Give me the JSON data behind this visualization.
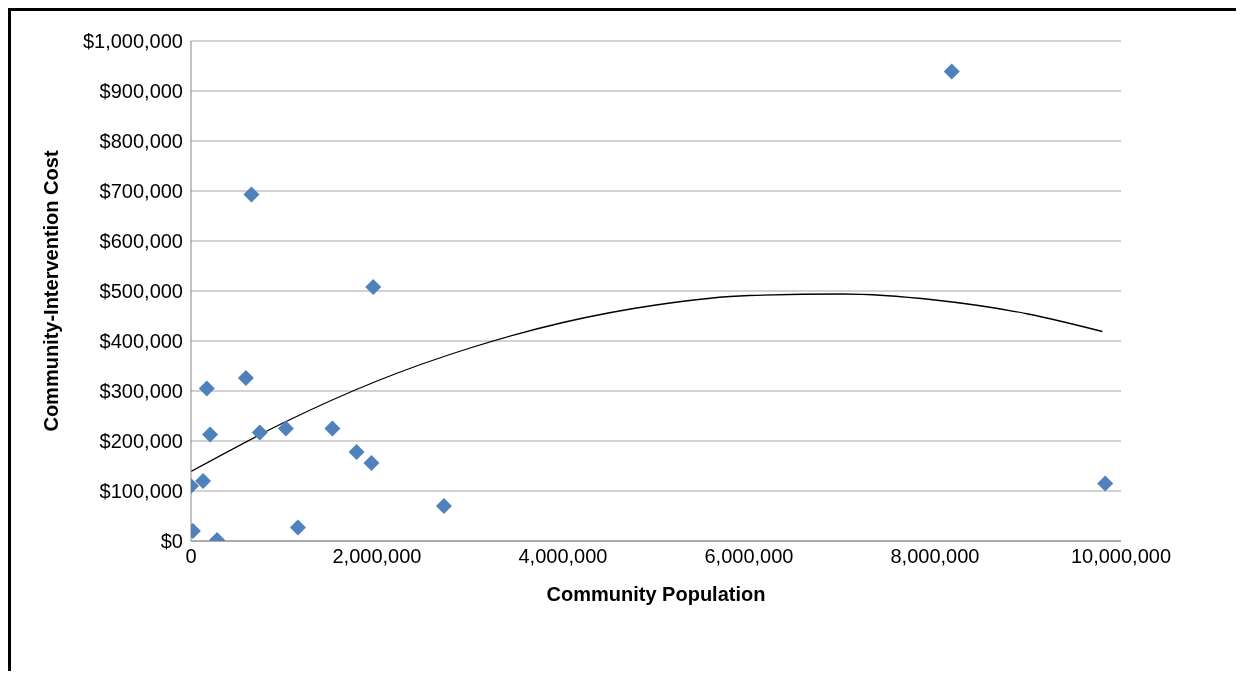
{
  "chart_data": {
    "type": "scatter",
    "xlabel": "Community Population",
    "ylabel": "Community-Intervention Cost",
    "xlim": [
      0,
      10000000
    ],
    "xticks": [
      {
        "value": 0,
        "label": "0"
      },
      {
        "value": 2000000,
        "label": "2,000,000"
      },
      {
        "value": 4000000,
        "label": "4,000,000"
      },
      {
        "value": 6000000,
        "label": "6,000,000"
      },
      {
        "value": 8000000,
        "label": "8,000,000"
      },
      {
        "value": 10000000,
        "label": "10,000,000"
      }
    ],
    "ylim": [
      0,
      1000000
    ],
    "yticks": [
      {
        "value": 0,
        "label": "$0"
      },
      {
        "value": 100000,
        "label": "$100,000"
      },
      {
        "value": 200000,
        "label": "$200,000"
      },
      {
        "value": 300000,
        "label": "$300,000"
      },
      {
        "value": 400000,
        "label": "$400,000"
      },
      {
        "value": 500000,
        "label": "$500,000"
      },
      {
        "value": 600000,
        "label": "$600,000"
      },
      {
        "value": 700000,
        "label": "$700,000"
      },
      {
        "value": 800000,
        "label": "$800,000"
      },
      {
        "value": 900000,
        "label": "$900,000"
      },
      {
        "value": 1000000,
        "label": "$1,000,000"
      }
    ],
    "grid": "y",
    "marker": "diamond",
    "series": [
      {
        "color": "#4f81bd",
        "x": [
          0,
          20000,
          130000,
          170000,
          205000,
          280000,
          590000,
          650000,
          740000,
          1020000,
          1150000,
          1520000,
          1780000,
          1940000,
          1960000,
          2720000,
          8180000,
          9830000
        ],
        "values": [
          110000,
          20000,
          120000,
          305000,
          213000,
          2000,
          326000,
          693000,
          217000,
          225000,
          27000,
          225000,
          178000,
          156000,
          508000,
          70000,
          939000,
          115000
        ]
      },
      {
        "type": "line",
        "color": "#000000",
        "line_style": "solid",
        "marker": "none",
        "x": [
          0,
          1000000,
          2000000,
          3000000,
          4000000,
          5000000,
          6000000,
          7000000,
          8000000,
          9000000,
          9800000
        ],
        "values": [
          139000,
          237000,
          320000,
          386000,
          437000,
          472000,
          491000,
          494000,
          482000,
          454000,
          419000
        ]
      }
    ]
  }
}
